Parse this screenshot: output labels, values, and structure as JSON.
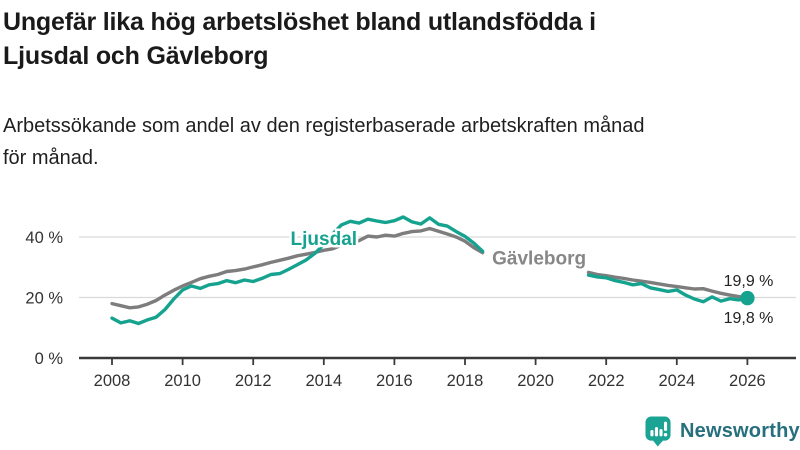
{
  "header": {
    "title_lines": [
      "Ungefär lika hög arbetslöshet bland utlandsfödda i",
      "Ljusdal och Gävleborg"
    ],
    "subtitle_lines": [
      "Arbetssökande som andel av den registerbaserade arbetskraften månad",
      "för månad."
    ]
  },
  "chart_data": {
    "type": "line",
    "title": "Ungefär lika hög arbetslöshet bland utlandsfödda i Ljusdal och Gävleborg",
    "subtitle": "Arbetssökande som andel av den registerbaserade arbetskraften månad för månad.",
    "unit": "%",
    "grid": "horizontal",
    "x_axis": {
      "ticks": [
        2008,
        2010,
        2012,
        2014,
        2016,
        2018,
        2020,
        2022,
        2024,
        2026
      ],
      "tick_labels": [
        "2008",
        "2010",
        "2012",
        "2014",
        "2016",
        "2018",
        "2020",
        "2022",
        "2024",
        "2026"
      ],
      "range": [
        2007.1,
        2027.4
      ]
    },
    "y_axis": {
      "ticks": [
        0,
        20,
        40
      ],
      "tick_labels": [
        "0 %",
        "20 %",
        "40 %"
      ],
      "range": [
        0,
        50
      ]
    },
    "data_gap": {
      "from": 2018.5,
      "to": 2021.5
    },
    "series": [
      {
        "name": "Gävleborg",
        "color": "#7d7d7d",
        "label": {
          "text": "Gävleborg",
          "x": 2020.1,
          "value": 33.3,
          "color": "#878787"
        },
        "end_label": {
          "text": "19,9 %",
          "side": "above"
        },
        "end_value": 19.9,
        "segments": [
          {
            "x_start": 2008.0,
            "x_step": 0.25,
            "values": [
              18.0,
              17.3,
              16.6,
              16.9,
              17.8,
              19.0,
              20.8,
              22.4,
              23.8,
              25.0,
              26.2,
              27.0,
              27.6,
              28.6,
              28.9,
              29.4,
              30.1,
              30.8,
              31.6,
              32.3,
              33.0,
              33.8,
              34.3,
              34.9,
              35.6,
              36.1,
              37.3,
              38.0,
              38.8,
              40.3,
              40.0,
              40.6,
              40.3,
              41.2,
              41.8,
              42.0,
              42.8,
              41.9,
              41.0,
              40.0,
              38.6,
              36.5,
              34.8
            ]
          },
          {
            "x_start": 2021.5,
            "x_step": 0.25,
            "values": [
              28.3,
              27.6,
              27.2,
              26.7,
              26.3,
              25.8,
              25.4,
              25.0,
              24.5,
              24.0,
              23.6,
              23.2,
              22.8,
              22.9,
              22.1,
              21.4,
              20.8,
              20.3,
              19.9
            ]
          }
        ]
      },
      {
        "name": "Ljusdal",
        "color": "#15a38f",
        "label": {
          "text": "Ljusdal",
          "x": 2014.0,
          "value": 39.7,
          "color": "#15a38f"
        },
        "end_label": {
          "text": "19,8 %",
          "side": "below"
        },
        "end_value": 19.8,
        "segments": [
          {
            "x_start": 2008.0,
            "x_step": 0.25,
            "values": [
              13.2,
              11.6,
              12.3,
              11.4,
              12.6,
              13.5,
              16.0,
              19.5,
              22.5,
              23.8,
              23.0,
              24.2,
              24.6,
              25.6,
              24.9,
              25.8,
              25.3,
              26.3,
              27.6,
              27.9,
              29.3,
              30.8,
              32.4,
              34.6,
              37.5,
              41.0,
              44.0,
              45.2,
              44.6,
              45.9,
              45.3,
              44.8,
              45.4,
              46.6,
              45.0,
              44.3,
              46.3,
              44.2,
              43.6,
              41.8,
              40.2,
              38.0,
              35.3
            ]
          },
          {
            "x_start": 2021.5,
            "x_step": 0.25,
            "values": [
              27.4,
              26.8,
              26.5,
              25.6,
              25.0,
              24.2,
              24.6,
              23.2,
              22.6,
              22.0,
              22.5,
              20.8,
              19.5,
              18.6,
              20.2,
              18.8,
              19.6,
              19.2,
              19.8
            ]
          }
        ]
      }
    ],
    "end_dot": {
      "series": "Ljusdal",
      "x": 2026.0,
      "value": 19.8,
      "color": "#15a38f"
    }
  },
  "footer": {
    "brand": "Newsworthy"
  },
  "colors": {
    "line_teal": "#15a38f",
    "line_gray": "#7d7d7d",
    "grid": "#d9d9d9",
    "axis": "#3a3a3a",
    "axis_text": "#333333",
    "title_text": "#1a1a1a",
    "brand_icon": "#1ba393",
    "brand_text": "#266f7d"
  }
}
